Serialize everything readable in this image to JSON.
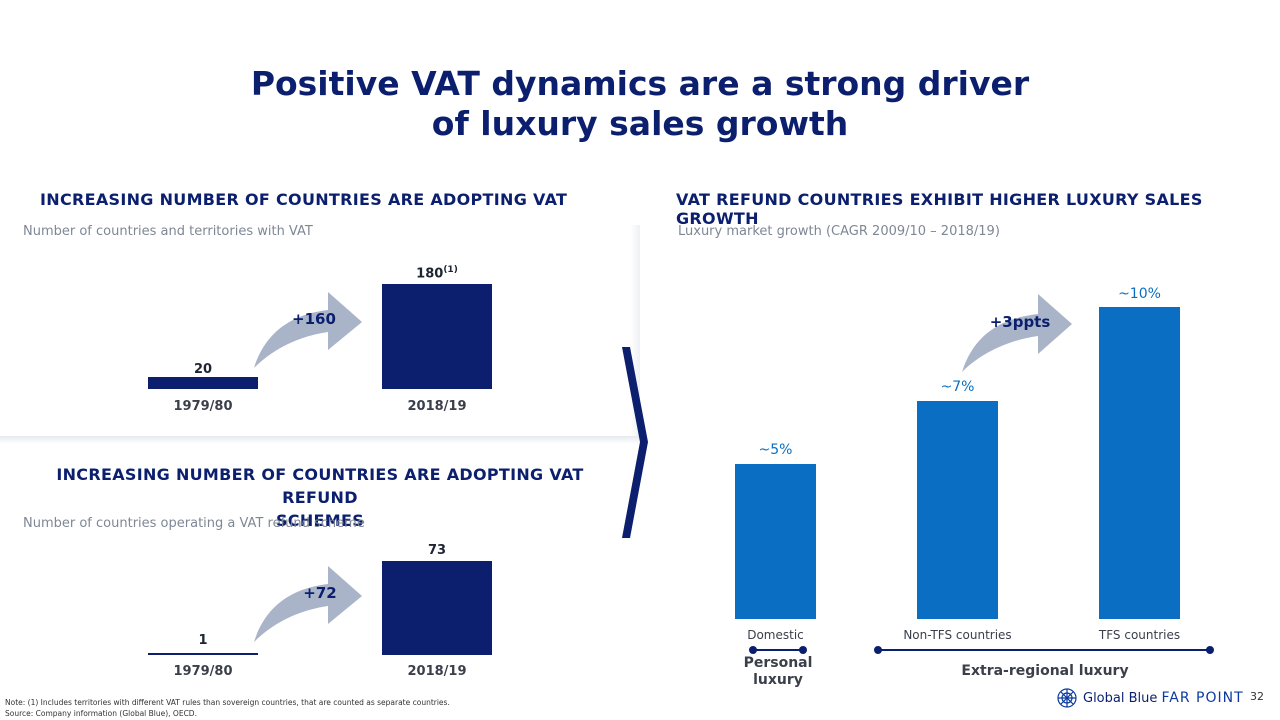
{
  "title_line1": "Positive VAT dynamics are a strong driver",
  "title_line2": "of luxury sales growth",
  "left_top": {
    "heading": "INCREASING NUMBER OF COUNTRIES ARE ADOPTING VAT",
    "subtitle": "Number of countries and territories with VAT",
    "delta": "+160",
    "value_label_2": "180",
    "value_label_2_sup": "(1)"
  },
  "left_bottom": {
    "heading_line1": "INCREASING NUMBER OF COUNTRIES ARE ADOPTING VAT REFUND",
    "heading_line2": "SCHEMES",
    "subtitle": "Number of countries operating a VAT refund scheme",
    "delta": "+72"
  },
  "right": {
    "heading": "VAT REFUND COUNTRIES EXHIBIT HIGHER LUXURY SALES GROWTH",
    "subtitle": "Luxury market growth (CAGR 2009/10 – 2018/19)",
    "delta": "+3ppts",
    "group_personal_line1": "Personal",
    "group_personal_line2": "luxury",
    "group_extra": "Extra-regional luxury"
  },
  "chart_data": [
    {
      "type": "bar",
      "title": "INCREASING NUMBER OF COUNTRIES ARE ADOPTING VAT",
      "categories": [
        "1979/80",
        "2018/19"
      ],
      "values": [
        20,
        180
      ],
      "value_labels": [
        "20",
        "180"
      ],
      "ylim": [
        0,
        180
      ]
    },
    {
      "type": "bar",
      "title": "INCREASING NUMBER OF COUNTRIES ARE ADOPTING VAT REFUND SCHEMES",
      "categories": [
        "1979/80",
        "2018/19"
      ],
      "values": [
        1,
        73
      ],
      "value_labels": [
        "1",
        "73"
      ],
      "ylim": [
        0,
        73
      ]
    },
    {
      "type": "bar",
      "title": "VAT REFUND COUNTRIES EXHIBIT HIGHER LUXURY SALES GROWTH",
      "ylabel": "Luxury market growth (CAGR 2009/10 – 2018/19)",
      "categories": [
        "Domestic",
        "Non-TFS countries",
        "TFS countries"
      ],
      "values": [
        5,
        7,
        10
      ],
      "value_labels": [
        "~5%",
        "~7%",
        "~10%"
      ],
      "ylim": [
        0,
        10
      ]
    }
  ],
  "footer": {
    "note": "Note: (1) Includes territories with different VAT rules than sovereign countries, that are counted as separate countries.",
    "source": "Source: Company information (Global Blue), OECD.",
    "brand": "Global Blue",
    "brand_suffix": "FAR POINT",
    "page_number": "32"
  },
  "colors": {
    "navy": "#0b1f6e",
    "blue": "#0a6fc2",
    "arrow": "#a9b4c8"
  }
}
